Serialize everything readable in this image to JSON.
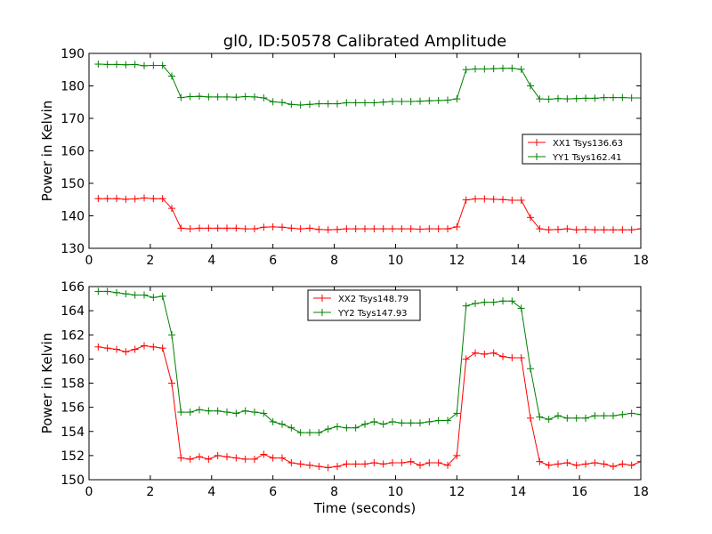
{
  "chart_data": [
    {
      "type": "line",
      "title": "gl0, ID:50578 Calibrated Amplitude",
      "xlabel": "",
      "ylabel": "Power in Kelvin",
      "xlim": [
        0,
        18
      ],
      "ylim": [
        130,
        190
      ],
      "xticks": [
        0,
        2,
        4,
        6,
        8,
        10,
        12,
        14,
        16,
        18
      ],
      "yticks": [
        130,
        140,
        150,
        160,
        170,
        180,
        190
      ],
      "grid": false,
      "legend_position": "center-right",
      "x": [
        0.3,
        0.6,
        0.9,
        1.2,
        1.5,
        1.8,
        2.1,
        2.4,
        2.7,
        3.0,
        3.3,
        3.6,
        3.9,
        4.2,
        4.5,
        4.8,
        5.1,
        5.4,
        5.7,
        6.0,
        6.3,
        6.6,
        6.9,
        7.2,
        7.5,
        7.8,
        8.1,
        8.4,
        8.7,
        9.0,
        9.3,
        9.6,
        9.9,
        10.2,
        10.5,
        10.8,
        11.1,
        11.4,
        11.7,
        12.0,
        12.3,
        12.6,
        12.9,
        13.2,
        13.5,
        13.8,
        14.1,
        14.4,
        14.7,
        15.0,
        15.3,
        15.6,
        15.9,
        16.2,
        16.5,
        16.8,
        17.1,
        17.4,
        17.7,
        18.0
      ],
      "series": [
        {
          "name": "XX1 Tsys136.63",
          "color": "#ff0000",
          "values": [
            145.3,
            145.3,
            145.3,
            145.1,
            145.2,
            145.5,
            145.3,
            145.3,
            142.3,
            136.2,
            136.0,
            136.2,
            136.2,
            136.2,
            136.2,
            136.2,
            136.0,
            136.0,
            136.5,
            136.6,
            136.5,
            136.2,
            136.0,
            136.2,
            135.8,
            135.7,
            135.8,
            136.0,
            136.0,
            136.0,
            136.0,
            136.0,
            136.0,
            136.0,
            136.0,
            135.9,
            136.0,
            136.0,
            136.0,
            136.6,
            144.9,
            145.2,
            145.2,
            145.1,
            145.0,
            144.8,
            144.8,
            139.5,
            136.0,
            135.7,
            135.8,
            136.0,
            135.7,
            135.8,
            135.7,
            135.7,
            135.7,
            135.7,
            135.7,
            136.0
          ]
        },
        {
          "name": "YY1 Tsys162.41",
          "color": "#008000",
          "values": [
            186.7,
            186.6,
            186.6,
            186.5,
            186.6,
            186.2,
            186.3,
            186.3,
            183.0,
            176.4,
            176.7,
            176.8,
            176.6,
            176.6,
            176.6,
            176.5,
            176.7,
            176.6,
            176.3,
            175.1,
            174.9,
            174.3,
            174.1,
            174.3,
            174.5,
            174.5,
            174.5,
            174.8,
            174.8,
            174.8,
            174.8,
            175.0,
            175.2,
            175.2,
            175.2,
            175.3,
            175.4,
            175.5,
            175.6,
            176.0,
            185.0,
            185.2,
            185.2,
            185.3,
            185.4,
            185.4,
            185.1,
            180.0,
            176.0,
            175.9,
            176.1,
            176.0,
            176.1,
            176.2,
            176.2,
            176.4,
            176.4,
            176.4,
            176.3,
            176.3
          ]
        }
      ]
    },
    {
      "type": "line",
      "title": "",
      "xlabel": "Time (seconds)",
      "ylabel": "Power in Kelvin",
      "xlim": [
        0,
        18
      ],
      "ylim": [
        150,
        166
      ],
      "xticks": [
        0,
        2,
        4,
        6,
        8,
        10,
        12,
        14,
        16,
        18
      ],
      "yticks": [
        150,
        152,
        154,
        156,
        158,
        160,
        162,
        164,
        166
      ],
      "grid": false,
      "legend_position": "top-center",
      "x": [
        0.3,
        0.6,
        0.9,
        1.2,
        1.5,
        1.8,
        2.1,
        2.4,
        2.7,
        3.0,
        3.3,
        3.6,
        3.9,
        4.2,
        4.5,
        4.8,
        5.1,
        5.4,
        5.7,
        6.0,
        6.3,
        6.6,
        6.9,
        7.2,
        7.5,
        7.8,
        8.1,
        8.4,
        8.7,
        9.0,
        9.3,
        9.6,
        9.9,
        10.2,
        10.5,
        10.8,
        11.1,
        11.4,
        11.7,
        12.0,
        12.3,
        12.6,
        12.9,
        13.2,
        13.5,
        13.8,
        14.1,
        14.4,
        14.7,
        15.0,
        15.3,
        15.6,
        15.9,
        16.2,
        16.5,
        16.8,
        17.1,
        17.4,
        17.7,
        18.0
      ],
      "series": [
        {
          "name": "XX2 Tsys148.79",
          "color": "#ff0000",
          "values": [
            161.0,
            160.9,
            160.8,
            160.6,
            160.8,
            161.1,
            161.0,
            160.9,
            158.0,
            151.8,
            151.7,
            151.9,
            151.7,
            152.0,
            151.9,
            151.8,
            151.7,
            151.7,
            152.1,
            151.8,
            151.8,
            151.4,
            151.3,
            151.2,
            151.1,
            151.0,
            151.1,
            151.3,
            151.3,
            151.3,
            151.4,
            151.3,
            151.4,
            151.4,
            151.5,
            151.2,
            151.4,
            151.4,
            151.2,
            152.0,
            160.0,
            160.5,
            160.4,
            160.5,
            160.2,
            160.1,
            160.1,
            155.1,
            151.5,
            151.2,
            151.3,
            151.4,
            151.2,
            151.3,
            151.4,
            151.3,
            151.1,
            151.3,
            151.2,
            151.5
          ]
        },
        {
          "name": "YY2 Tsys147.93",
          "color": "#008000",
          "values": [
            165.6,
            165.6,
            165.5,
            165.4,
            165.3,
            165.3,
            165.1,
            165.2,
            162.0,
            155.6,
            155.6,
            155.8,
            155.7,
            155.7,
            155.6,
            155.5,
            155.7,
            155.6,
            155.5,
            154.8,
            154.6,
            154.3,
            153.9,
            153.9,
            153.9,
            154.2,
            154.4,
            154.3,
            154.3,
            154.6,
            154.8,
            154.6,
            154.8,
            154.7,
            154.7,
            154.7,
            154.8,
            154.9,
            154.9,
            155.5,
            164.4,
            164.6,
            164.7,
            164.7,
            164.8,
            164.8,
            164.2,
            159.2,
            155.2,
            155.0,
            155.3,
            155.1,
            155.1,
            155.1,
            155.3,
            155.3,
            155.3,
            155.4,
            155.5,
            155.4
          ]
        }
      ]
    }
  ]
}
